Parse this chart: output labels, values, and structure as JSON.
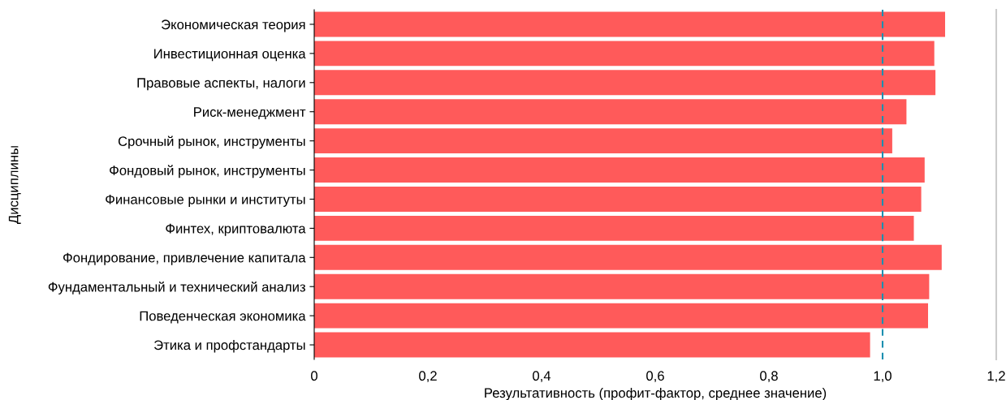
{
  "chart_data": {
    "type": "bar",
    "orientation": "horizontal",
    "xlabel": "Результативность (профит-фактор, среднее значение)",
    "ylabel": "Дисциплины",
    "categories": [
      "Экономическая теория",
      "Инвестиционная оценка",
      "Правовые аспекты, налоги",
      "Риск-менеджмент",
      "Срочный рынок, инструменты",
      "Фондовый рынок, инструменты",
      "Финансовые рынки и институты",
      "Финтех, криптовалюта",
      "Фондирование, привлечение капитала",
      "Фундаментальный и технический анализ",
      "Поведенческая экономика",
      "Этика и профстандарты"
    ],
    "values": [
      1.11,
      1.091,
      1.093,
      1.042,
      1.017,
      1.074,
      1.068,
      1.055,
      1.104,
      1.082,
      1.08,
      0.978
    ],
    "color": "#ff5a5a",
    "xlim": [
      0,
      1.2
    ],
    "xticks": [
      {
        "value": 0,
        "label": "0"
      },
      {
        "value": 0.2,
        "label": "0,2"
      },
      {
        "value": 0.4,
        "label": "0,4"
      },
      {
        "value": 0.6,
        "label": "0,6"
      },
      {
        "value": 0.8,
        "label": "0,8"
      },
      {
        "value": 1.0,
        "label": "1,0"
      },
      {
        "value": 1.2,
        "label": "1,2"
      }
    ],
    "ref_lines": [
      {
        "axis": "x",
        "value": 1.0,
        "color": "#1b8fb0",
        "line_style": "dashed"
      }
    ],
    "grid": false,
    "legend": false
  }
}
